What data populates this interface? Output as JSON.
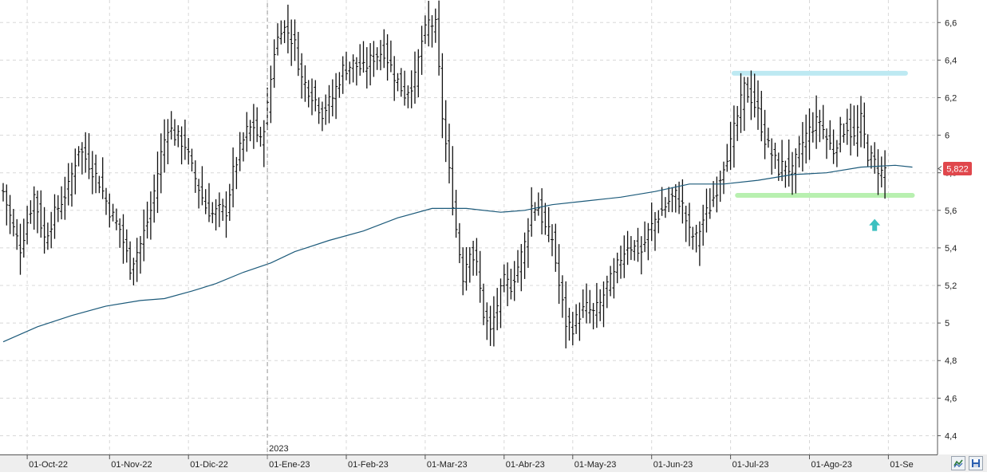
{
  "chart_data": {
    "type": "bar",
    "subtype": "ohlc",
    "title": "",
    "xlabel": "",
    "ylabel": "",
    "ylim": [
      4.3,
      6.72
    ],
    "y_ticks": [
      4.4,
      4.6,
      4.8,
      5,
      5.2,
      5.4,
      5.6,
      5.8,
      6,
      6.2,
      6.4,
      6.6
    ],
    "y_tick_labels": [
      "4,4",
      "4,6",
      "4,8",
      "5",
      "5,2",
      "5,4",
      "5,6",
      "5,8",
      "6",
      "6,2",
      "6,4",
      "6,6"
    ],
    "x_tick_labels": [
      "01-Oct-22",
      "01-Nov-22",
      "01-Dic-22",
      "01-Ene-23",
      "01-Feb-23",
      "01-Mar-23",
      "01-Abr-23",
      "01-May-23",
      "01-Jun-23",
      "01-Jul-23",
      "01-Ago-23",
      "01-Se"
    ],
    "x_tick_index": [
      7,
      31,
      54,
      77,
      100,
      123,
      146,
      166,
      189,
      212,
      235,
      258
    ],
    "year_marker": {
      "label": "2023",
      "index": 77
    },
    "last_price": {
      "value": 5.822,
      "label": "5,822"
    },
    "grid": true,
    "legend": "none",
    "colors": {
      "bars": "#111111",
      "moving_average": "#1c5a7a",
      "resistance": "#bde9f2",
      "support": "#b8f0b0",
      "arrow": "#3cc0c0",
      "last_price_bg": "#e0474c"
    },
    "annotations": {
      "resistance_line": {
        "value": 6.33,
        "from_index": 213,
        "to_index": 263
      },
      "support_line": {
        "value": 5.68,
        "from_index": 214,
        "to_index": 265
      },
      "arrow": {
        "value": 5.52,
        "index": 254
      }
    },
    "moving_average": [
      [
        0,
        4.9
      ],
      [
        10,
        4.98
      ],
      [
        20,
        5.04
      ],
      [
        30,
        5.09
      ],
      [
        40,
        5.12
      ],
      [
        47,
        5.13
      ],
      [
        55,
        5.17
      ],
      [
        62,
        5.21
      ],
      [
        70,
        5.27
      ],
      [
        78,
        5.32
      ],
      [
        85,
        5.38
      ],
      [
        95,
        5.44
      ],
      [
        105,
        5.49
      ],
      [
        115,
        5.56
      ],
      [
        125,
        5.61
      ],
      [
        135,
        5.61
      ],
      [
        145,
        5.59
      ],
      [
        152,
        5.6
      ],
      [
        160,
        5.63
      ],
      [
        170,
        5.65
      ],
      [
        180,
        5.67
      ],
      [
        190,
        5.7
      ],
      [
        200,
        5.74
      ],
      [
        210,
        5.74
      ],
      [
        220,
        5.76
      ],
      [
        230,
        5.79
      ],
      [
        240,
        5.8
      ],
      [
        250,
        5.83
      ],
      [
        260,
        5.84
      ],
      [
        265,
        5.83
      ]
    ],
    "anchors": [
      [
        0,
        5.7
      ],
      [
        3,
        5.5
      ],
      [
        5,
        5.4
      ],
      [
        9,
        5.68
      ],
      [
        12,
        5.45
      ],
      [
        15,
        5.58
      ],
      [
        19,
        5.72
      ],
      [
        22,
        5.93
      ],
      [
        25,
        5.85
      ],
      [
        28,
        5.75
      ],
      [
        31,
        5.6
      ],
      [
        34,
        5.5
      ],
      [
        37,
        5.3
      ],
      [
        40,
        5.42
      ],
      [
        43,
        5.6
      ],
      [
        46,
        5.9
      ],
      [
        48,
        6.05
      ],
      [
        50,
        6.0
      ],
      [
        53,
        5.95
      ],
      [
        55,
        5.82
      ],
      [
        57,
        5.72
      ],
      [
        59,
        5.62
      ],
      [
        61,
        5.58
      ],
      [
        63,
        5.6
      ],
      [
        65,
        5.6
      ],
      [
        67,
        5.8
      ],
      [
        69,
        5.92
      ],
      [
        71,
        6.02
      ],
      [
        73,
        6.05
      ],
      [
        75,
        5.96
      ],
      [
        77,
        6.15
      ],
      [
        79,
        6.45
      ],
      [
        81,
        6.58
      ],
      [
        83,
        6.55
      ],
      [
        85,
        6.48
      ],
      [
        87,
        6.3
      ],
      [
        90,
        6.22
      ],
      [
        93,
        6.12
      ],
      [
        96,
        6.2
      ],
      [
        99,
        6.35
      ],
      [
        102,
        6.38
      ],
      [
        105,
        6.35
      ],
      [
        108,
        6.42
      ],
      [
        111,
        6.45
      ],
      [
        114,
        6.32
      ],
      [
        117,
        6.22
      ],
      [
        120,
        6.3
      ],
      [
        122,
        6.5
      ],
      [
        124,
        6.6
      ],
      [
        126,
        6.58
      ],
      [
        128,
        6.1
      ],
      [
        130,
        5.8
      ],
      [
        132,
        5.5
      ],
      [
        134,
        5.25
      ],
      [
        136,
        5.4
      ],
      [
        138,
        5.3
      ],
      [
        140,
        5.05
      ],
      [
        142,
        4.95
      ],
      [
        144,
        5.1
      ],
      [
        146,
        5.22
      ],
      [
        148,
        5.2
      ],
      [
        150,
        5.3
      ],
      [
        152,
        5.42
      ],
      [
        154,
        5.62
      ],
      [
        156,
        5.62
      ],
      [
        158,
        5.5
      ],
      [
        160,
        5.45
      ],
      [
        162,
        5.2
      ],
      [
        164,
        5.0
      ],
      [
        166,
        4.98
      ],
      [
        168,
        5.05
      ],
      [
        170,
        5.08
      ],
      [
        172,
        5.05
      ],
      [
        174,
        5.1
      ],
      [
        176,
        5.2
      ],
      [
        178,
        5.25
      ],
      [
        180,
        5.35
      ],
      [
        182,
        5.42
      ],
      [
        184,
        5.4
      ],
      [
        186,
        5.38
      ],
      [
        188,
        5.48
      ],
      [
        190,
        5.55
      ],
      [
        192,
        5.6
      ],
      [
        194,
        5.65
      ],
      [
        196,
        5.68
      ],
      [
        198,
        5.62
      ],
      [
        200,
        5.48
      ],
      [
        202,
        5.45
      ],
      [
        204,
        5.55
      ],
      [
        206,
        5.62
      ],
      [
        208,
        5.72
      ],
      [
        210,
        5.85
      ],
      [
        212,
        5.95
      ],
      [
        214,
        6.1
      ],
      [
        216,
        6.25
      ],
      [
        218,
        6.2
      ],
      [
        220,
        6.12
      ],
      [
        222,
        5.98
      ],
      [
        224,
        5.9
      ],
      [
        226,
        5.82
      ],
      [
        228,
        5.85
      ],
      [
        230,
        5.8
      ],
      [
        232,
        5.92
      ],
      [
        234,
        6.0
      ],
      [
        236,
        6.05
      ],
      [
        238,
        6.08
      ],
      [
        240,
        5.98
      ],
      [
        242,
        5.92
      ],
      [
        244,
        6.02
      ],
      [
        246,
        6.05
      ],
      [
        248,
        5.98
      ],
      [
        250,
        6.08
      ],
      [
        252,
        5.9
      ],
      [
        254,
        5.85
      ],
      [
        256,
        5.8
      ],
      [
        257,
        5.82
      ]
    ],
    "n_bars": 258
  },
  "toolbar": {
    "icons": [
      "chart-mode-icon",
      "save-icon"
    ]
  }
}
